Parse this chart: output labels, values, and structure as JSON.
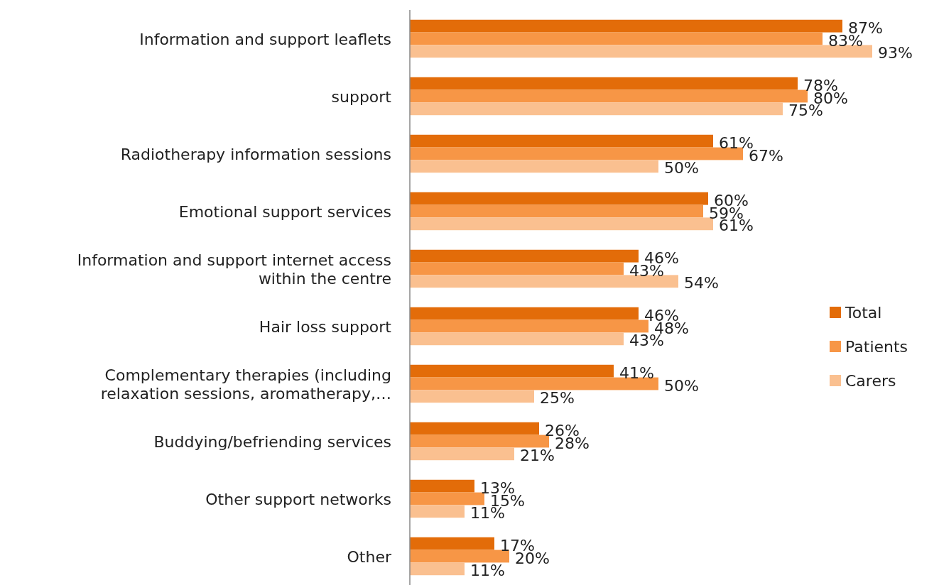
{
  "chart_data": {
    "type": "bar",
    "orientation": "horizontal",
    "categories": [
      "Information and support leaflets",
      "support",
      "Radiotherapy information sessions",
      "Emotional support services",
      "Information and support internet access within the centre",
      "Hair loss support",
      "Complementary therapies (including relaxation sessions, aromatherapy,…",
      "Buddying/befriending services",
      "Other support networks",
      "Other"
    ],
    "series": [
      {
        "name": "Total",
        "color": "#e36c09",
        "values": [
          87,
          78,
          61,
          60,
          46,
          46,
          41,
          26,
          13,
          17
        ],
        "value_labels": [
          "87%",
          "78%",
          "61%",
          "60%",
          "46%",
          "46%",
          "41%",
          "26%",
          "13%",
          "17%"
        ]
      },
      {
        "name": "Patients",
        "color": "#f79646",
        "values": [
          83,
          80,
          67,
          59,
          43,
          48,
          50,
          28,
          15,
          20
        ],
        "value_labels": [
          "83%",
          "80%",
          "67%",
          "59%",
          "43%",
          "48%",
          "50%",
          "28%",
          "15%",
          "20%"
        ]
      },
      {
        "name": "Carers",
        "color": "#fac090",
        "values": [
          93,
          75,
          50,
          61,
          54,
          43,
          25,
          21,
          11,
          11
        ],
        "value_labels": [
          "93%",
          "75%",
          "50%",
          "61%",
          "54%",
          "43%",
          "25%",
          "21%",
          "11%",
          "11%"
        ]
      }
    ],
    "tick_labels": "y",
    "legend": "right"
  }
}
